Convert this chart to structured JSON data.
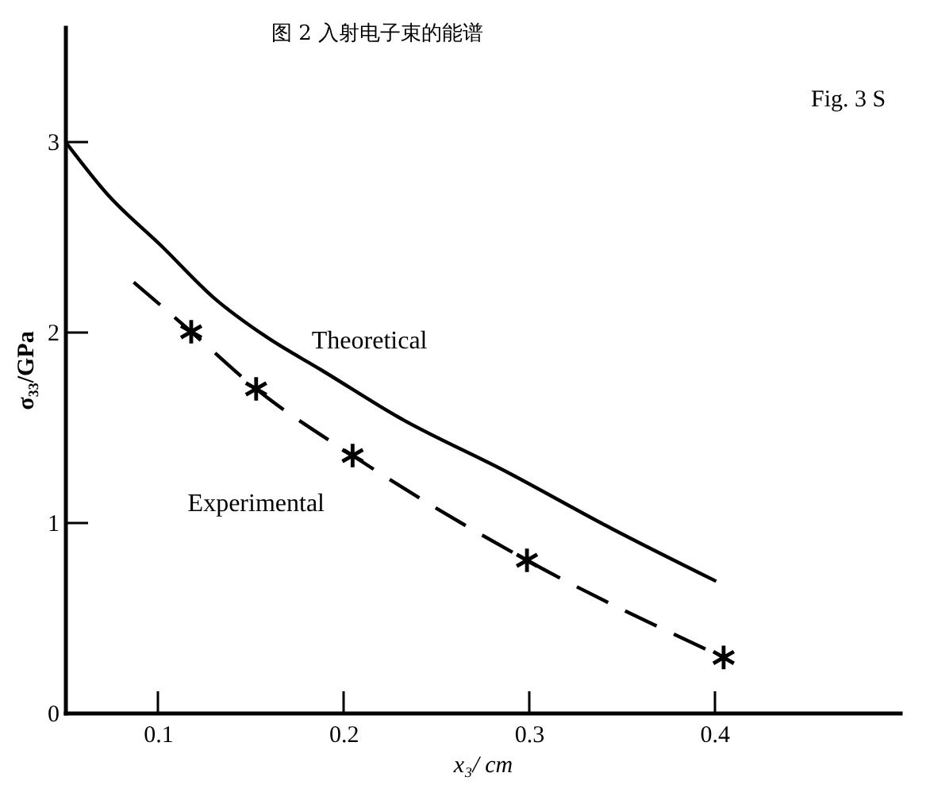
{
  "chart_data": {
    "type": "line",
    "xlabel": "x₃/ cm",
    "ylabel": "σ₃₃/GPa",
    "annotations": [
      "图 2 入射电子束的能谱",
      "Fig. 3 S"
    ],
    "xlim": [
      0.05,
      0.5
    ],
    "ylim": [
      0,
      3.6
    ],
    "xticks": [
      0.1,
      0.2,
      0.3,
      0.4
    ],
    "yticks": [
      0,
      1,
      2,
      3
    ],
    "series": [
      {
        "name": "Theoretical",
        "color": "#000000",
        "line_style": "solid",
        "marker": "none",
        "x": [
          0.05,
          0.073,
          0.102,
          0.13,
          0.159,
          0.188,
          0.23,
          0.287,
          0.344,
          0.401
        ],
        "values": [
          3.0,
          2.72,
          2.45,
          2.18,
          1.97,
          1.8,
          1.55,
          1.27,
          0.97,
          0.69
        ]
      },
      {
        "name": "Experimental",
        "color": "#000000",
        "line_style": "dashed",
        "marker": "none",
        "x": [
          0.087,
          0.118,
          0.153,
          0.205,
          0.299,
          0.405
        ],
        "values": [
          2.26,
          2.0,
          1.7,
          1.35,
          0.8,
          0.29
        ]
      },
      {
        "type": "scatter",
        "color": "#000000",
        "marker": "cross",
        "x": [
          0.118,
          0.153,
          0.205,
          0.299,
          0.405
        ],
        "values": [
          2.0,
          1.7,
          1.35,
          0.8,
          0.29
        ]
      }
    ]
  }
}
